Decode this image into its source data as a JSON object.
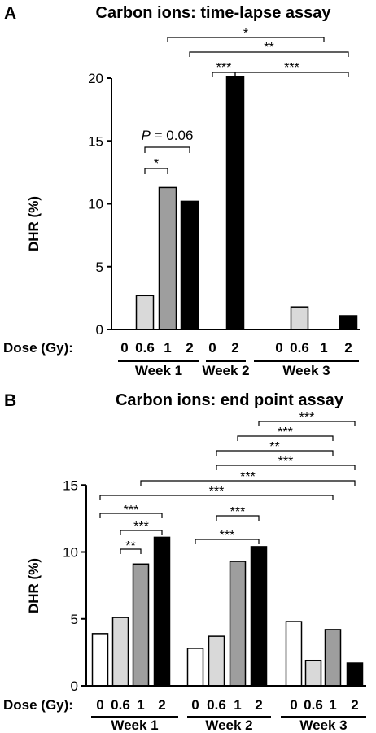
{
  "chart_data": [
    {
      "panel": "A",
      "type": "bar",
      "title": "Carbon ions: time-lapse assay",
      "ylabel": "DHR (%)",
      "dose_axis_label": "Dose (Gy):",
      "ylim": [
        0,
        20
      ],
      "yticks": [
        0,
        5,
        10,
        15,
        20
      ],
      "groups": [
        {
          "name": "Week 1",
          "bars": [
            {
              "dose": "0",
              "value": 0,
              "color": "#ffffff"
            },
            {
              "dose": "0.6",
              "value": 2.7,
              "color": "#d9d9d9"
            },
            {
              "dose": "1",
              "value": 11.3,
              "color": "#9e9e9e"
            },
            {
              "dose": "2",
              "value": 10.2,
              "color": "#000000"
            }
          ]
        },
        {
          "name": "Week 2",
          "bars": [
            {
              "dose": "0",
              "value": 0,
              "color": "#ffffff"
            },
            {
              "dose": "2",
              "value": 20.1,
              "color": "#000000"
            }
          ]
        },
        {
          "name": "Week 3",
          "bars": [
            {
              "dose": "0",
              "value": 0,
              "color": "#ffffff"
            },
            {
              "dose": "0.6",
              "value": 1.8,
              "color": "#d9d9d9"
            },
            {
              "dose": "1",
              "value": 0,
              "color": "#9e9e9e"
            },
            {
              "dose": "2",
              "value": 1.1,
              "color": "#000000"
            }
          ]
        }
      ],
      "annotations": [
        {
          "label": "*",
          "from": [
            0,
            1
          ],
          "to": [
            0,
            2
          ]
        },
        {
          "label": "P = 0.06",
          "from": [
            0,
            1
          ],
          "to": [
            0,
            3
          ]
        },
        {
          "label": "***",
          "from": [
            1,
            0
          ],
          "to": [
            1,
            1
          ]
        },
        {
          "label": "***",
          "from": [
            1,
            1
          ],
          "to": [
            2,
            3
          ]
        },
        {
          "label": "**",
          "from": [
            0,
            3
          ],
          "to": [
            2,
            3
          ]
        },
        {
          "label": "*",
          "from": [
            0,
            2
          ],
          "to": [
            2,
            2
          ]
        }
      ]
    },
    {
      "panel": "B",
      "type": "bar",
      "title": "Carbon ions: end point assay",
      "ylabel": "DHR (%)",
      "dose_axis_label": "Dose (Gy):",
      "ylim": [
        0,
        15
      ],
      "yticks": [
        0,
        5,
        10,
        15
      ],
      "groups": [
        {
          "name": "Week 1",
          "bars": [
            {
              "dose": "0",
              "value": 3.9,
              "color": "#ffffff"
            },
            {
              "dose": "0.6",
              "value": 5.1,
              "color": "#d9d9d9"
            },
            {
              "dose": "1",
              "value": 9.1,
              "color": "#9e9e9e"
            },
            {
              "dose": "2",
              "value": 11.1,
              "color": "#000000"
            }
          ]
        },
        {
          "name": "Week 2",
          "bars": [
            {
              "dose": "0",
              "value": 2.8,
              "color": "#ffffff"
            },
            {
              "dose": "0.6",
              "value": 3.7,
              "color": "#d9d9d9"
            },
            {
              "dose": "1",
              "value": 9.3,
              "color": "#9e9e9e"
            },
            {
              "dose": "2",
              "value": 10.4,
              "color": "#000000"
            }
          ]
        },
        {
          "name": "Week 3",
          "bars": [
            {
              "dose": "0",
              "value": 4.8,
              "color": "#ffffff"
            },
            {
              "dose": "0.6",
              "value": 1.9,
              "color": "#d9d9d9"
            },
            {
              "dose": "1",
              "value": 4.2,
              "color": "#9e9e9e"
            },
            {
              "dose": "2",
              "value": 1.7,
              "color": "#000000"
            }
          ]
        }
      ],
      "annotations": [
        {
          "label": "**",
          "from": [
            0,
            1
          ],
          "to": [
            0,
            2
          ]
        },
        {
          "label": "***",
          "from": [
            0,
            1
          ],
          "to": [
            0,
            3
          ]
        },
        {
          "label": "***",
          "from": [
            0,
            0
          ],
          "to": [
            0,
            3
          ]
        },
        {
          "label": "***",
          "from": [
            1,
            0
          ],
          "to": [
            1,
            3
          ]
        },
        {
          "label": "***",
          "from": [
            1,
            1
          ],
          "to": [
            1,
            3
          ]
        },
        {
          "label": "***",
          "from": [
            0,
            0
          ],
          "to": [
            2,
            2
          ]
        },
        {
          "label": "***",
          "from": [
            0,
            2
          ],
          "to": [
            2,
            3
          ]
        },
        {
          "label": "***",
          "from": [
            1,
            1
          ],
          "to": [
            2,
            3
          ]
        },
        {
          "label": "**",
          "from": [
            1,
            1
          ],
          "to": [
            2,
            2
          ]
        },
        {
          "label": "***",
          "from": [
            1,
            2
          ],
          "to": [
            2,
            2
          ]
        },
        {
          "label": "***",
          "from": [
            1,
            3
          ],
          "to": [
            2,
            3
          ]
        }
      ]
    }
  ]
}
